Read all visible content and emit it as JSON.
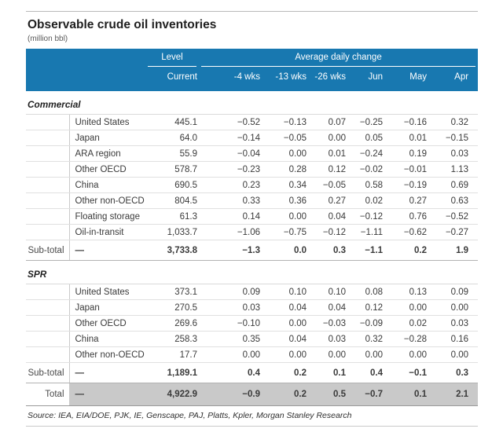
{
  "title": "Observable crude oil inventories",
  "subtitle": "(million bbl)",
  "header": {
    "level_group": "Level",
    "change_group": "Average daily change",
    "columns": [
      "Current",
      "-4 wks",
      "-13 wks",
      "-26 wks",
      "Jun",
      "May",
      "Apr"
    ]
  },
  "sections": [
    {
      "name": "Commercial",
      "key": "commercial",
      "rows": [
        {
          "label": "United States",
          "values": [
            "445.1",
            "−0.52",
            "−0.13",
            "0.07",
            "−0.25",
            "−0.16",
            "0.32"
          ]
        },
        {
          "label": "Japan",
          "values": [
            "64.0",
            "−0.14",
            "−0.05",
            "0.00",
            "0.05",
            "0.01",
            "−0.15"
          ]
        },
        {
          "label": "ARA region",
          "values": [
            "55.9",
            "−0.04",
            "0.00",
            "0.01",
            "−0.24",
            "0.19",
            "0.03"
          ]
        },
        {
          "label": "Other OECD",
          "values": [
            "578.7",
            "−0.23",
            "0.28",
            "0.12",
            "−0.02",
            "−0.01",
            "1.13"
          ]
        },
        {
          "label": "China",
          "values": [
            "690.5",
            "0.23",
            "0.34",
            "−0.05",
            "0.58",
            "−0.19",
            "0.69"
          ]
        },
        {
          "label": "Other non-OECD",
          "values": [
            "804.5",
            "0.33",
            "0.36",
            "0.27",
            "0.02",
            "0.27",
            "0.63"
          ]
        },
        {
          "label": "Floating storage",
          "values": [
            "61.3",
            "0.14",
            "0.00",
            "0.04",
            "−0.12",
            "0.76",
            "−0.52"
          ]
        },
        {
          "label": "Oil-in-transit",
          "values": [
            "1,033.7",
            "−1.06",
            "−0.75",
            "−0.12",
            "−1.11",
            "−0.62",
            "−0.27"
          ]
        }
      ],
      "subtotal": {
        "label": "Sub-total",
        "dash": "—",
        "values": [
          "3,733.8",
          "−1.3",
          "0.0",
          "0.3",
          "−1.1",
          "0.2",
          "1.9"
        ]
      }
    },
    {
      "name": "SPR",
      "key": "spr",
      "rows": [
        {
          "label": "United States",
          "values": [
            "373.1",
            "0.09",
            "0.10",
            "0.10",
            "0.08",
            "0.13",
            "0.09"
          ]
        },
        {
          "label": "Japan",
          "values": [
            "270.5",
            "0.03",
            "0.04",
            "0.04",
            "0.12",
            "0.00",
            "0.00"
          ]
        },
        {
          "label": "Other OECD",
          "values": [
            "269.6",
            "−0.10",
            "0.00",
            "−0.03",
            "−0.09",
            "0.02",
            "0.03"
          ]
        },
        {
          "label": "China",
          "values": [
            "258.3",
            "0.35",
            "0.04",
            "0.03",
            "0.32",
            "−0.28",
            "0.16"
          ]
        },
        {
          "label": "Other non-OECD",
          "values": [
            "17.7",
            "0.00",
            "0.00",
            "0.00",
            "0.00",
            "0.00",
            "0.00"
          ]
        }
      ],
      "subtotal": {
        "label": "Sub-total",
        "dash": "—",
        "values": [
          "1,189.1",
          "0.4",
          "0.2",
          "0.1",
          "0.4",
          "−0.1",
          "0.3"
        ]
      }
    }
  ],
  "total": {
    "label": "Total",
    "dash": "—",
    "values": [
      "4,922.9",
      "−0.9",
      "0.2",
      "0.5",
      "−0.7",
      "0.1",
      "2.1"
    ]
  },
  "source": "Source: IEA, EIA/DOE, PJK, IE, Genscape, PAJ, Platts, Kpler, Morgan Stanley Research",
  "colors": {
    "header_blue": "#1878b0",
    "total_row_gray": "#c9c9c9"
  }
}
